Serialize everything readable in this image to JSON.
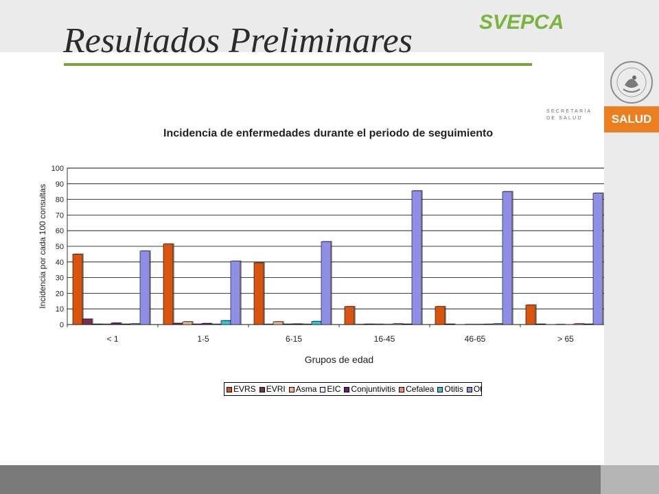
{
  "header": {
    "title": "Resultados Preliminares",
    "brand": "SVEPCA",
    "secretaria": "SECRETARÍA DE SALUD",
    "salud": "SALUD",
    "seal_text": "ESTADOS UNIDOS MEXICANOS"
  },
  "colors": {
    "brand_green": "#78b53b",
    "title_rule": "#77a43a",
    "salud_orange": "#eb7e1f"
  },
  "chart_data": {
    "type": "bar",
    "title": "Incidencia de enfermedades durante el periodo de seguimiento",
    "xlabel": "Grupos de edad",
    "ylabel": "Incidencia por cada 100 consultas",
    "ylim": [
      0,
      100
    ],
    "yticks": [
      0,
      10,
      20,
      30,
      40,
      50,
      60,
      70,
      80,
      90,
      100
    ],
    "grid": true,
    "legend_position": "bottom",
    "categories": [
      "< 1",
      "1-5",
      "6-15",
      "16-45",
      "46-65",
      "> 65"
    ],
    "series": [
      {
        "name": "EVRS",
        "color": "#d8540f",
        "values": [
          45,
          51.5,
          39.5,
          11.5,
          11.5,
          12.5
        ]
      },
      {
        "name": "EVRI",
        "color": "#7b2f55",
        "values": [
          3.5,
          0.8,
          0.2,
          0.1,
          0.3,
          0.3
        ]
      },
      {
        "name": "Asma",
        "color": "#e8b58a",
        "values": [
          0.3,
          1.8,
          1.8,
          0.3,
          0,
          0
        ]
      },
      {
        "name": "EIC",
        "color": "#e0eff8",
        "values": [
          0.2,
          0.3,
          0.3,
          0.2,
          0.1,
          0.1
        ]
      },
      {
        "name": "Conjuntivitis",
        "color": "#6b1f7a",
        "values": [
          1,
          0.7,
          0.4,
          0.1,
          0.1,
          0
        ]
      },
      {
        "name": "Cefalea",
        "color": "#f08a70",
        "values": [
          0.3,
          0.2,
          0.2,
          0.5,
          0.2,
          0.5
        ]
      },
      {
        "name": "Otitis",
        "color": "#35c6d6",
        "values": [
          0.5,
          2.5,
          2,
          0.3,
          0.5,
          0.3
        ]
      },
      {
        "name": "Otras",
        "color": "#8f8fe8",
        "values": [
          47,
          40.5,
          53,
          85.5,
          85,
          84
        ]
      }
    ]
  }
}
